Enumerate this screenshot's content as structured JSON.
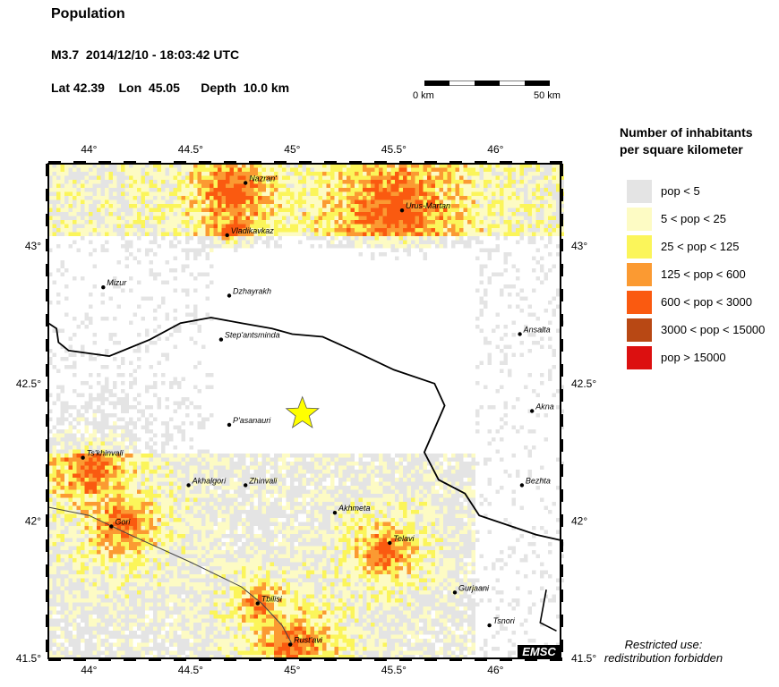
{
  "header": {
    "title": "Population",
    "event": "M3.7  2014/12/10 - 18:03:42 UTC",
    "location": "Lat 42.39    Lon  45.05      Depth  10.0 km"
  },
  "scale_bar": {
    "left_label": "0 km",
    "right_label": "50 km"
  },
  "map": {
    "lon_ticks": [
      {
        "value": 44,
        "label": "44°"
      },
      {
        "value": 44.5,
        "label": "44.5°"
      },
      {
        "value": 45,
        "label": "45°"
      },
      {
        "value": 45.5,
        "label": "45.5°"
      },
      {
        "value": 46,
        "label": "46°"
      }
    ],
    "lat_ticks": [
      {
        "value": 43,
        "label": "43°"
      },
      {
        "value": 42.5,
        "label": "42.5°"
      },
      {
        "value": 42,
        "label": "42°"
      },
      {
        "value": 41.5,
        "label": "41.5°"
      }
    ],
    "lon_range": [
      43.8,
      46.32
    ],
    "lat_range": [
      41.5,
      43.3
    ],
    "epicenter": {
      "lon": 45.05,
      "lat": 42.39,
      "marker": "star",
      "color": "#ffff00"
    },
    "cities": [
      {
        "name": "Nazran'",
        "lon": 44.77,
        "lat": 43.23
      },
      {
        "name": "Urus-Martan",
        "lon": 45.54,
        "lat": 43.13
      },
      {
        "name": "Vladikavkaz",
        "lon": 44.68,
        "lat": 43.04
      },
      {
        "name": "Mizur",
        "lon": 44.07,
        "lat": 42.85
      },
      {
        "name": "Dzhayrakh",
        "lon": 44.69,
        "lat": 42.82
      },
      {
        "name": "Ansalta",
        "lon": 46.12,
        "lat": 42.68
      },
      {
        "name": "Step'antsminda",
        "lon": 44.65,
        "lat": 42.66
      },
      {
        "name": "Akna",
        "lon": 46.18,
        "lat": 42.4
      },
      {
        "name": "P'asanauri",
        "lon": 44.69,
        "lat": 42.35
      },
      {
        "name": "Ts'khinvali",
        "lon": 43.97,
        "lat": 42.23
      },
      {
        "name": "Bezhta",
        "lon": 46.13,
        "lat": 42.13
      },
      {
        "name": "Akhalgori",
        "lon": 44.49,
        "lat": 42.13
      },
      {
        "name": "Zhinvali",
        "lon": 44.77,
        "lat": 42.13
      },
      {
        "name": "Akhmeta",
        "lon": 45.21,
        "lat": 42.03
      },
      {
        "name": "Gori",
        "lon": 44.11,
        "lat": 41.98
      },
      {
        "name": "Telavi",
        "lon": 45.48,
        "lat": 41.92
      },
      {
        "name": "Gurjaani",
        "lon": 45.8,
        "lat": 41.74
      },
      {
        "name": "Tbilisi",
        "lon": 44.83,
        "lat": 41.7
      },
      {
        "name": "Tsnori",
        "lon": 45.97,
        "lat": 41.62
      },
      {
        "name": "Rust'avi",
        "lon": 44.99,
        "lat": 41.55
      }
    ],
    "watermark": "EMSC"
  },
  "legend": {
    "title_line1": "Number of inhabitants",
    "title_line2": "per square kilometer",
    "items": [
      {
        "label": "pop < 5",
        "color": "#e4e4e4"
      },
      {
        "label": "5 < pop < 25",
        "color": "#fdfbc4"
      },
      {
        "label": "25 < pop < 125",
        "color": "#fbf55a"
      },
      {
        "label": "125 < pop < 600",
        "color": "#fb9a32"
      },
      {
        "label": "600 < pop < 3000",
        "color": "#fa5a10"
      },
      {
        "label": "3000 < pop < 15000",
        "color": "#b84814"
      },
      {
        "label": "pop > 15000",
        "color": "#dc1010"
      }
    ]
  },
  "footer": {
    "restricted_line1": "Restricted use:",
    "restricted_line2": "redistribution forbidden"
  }
}
